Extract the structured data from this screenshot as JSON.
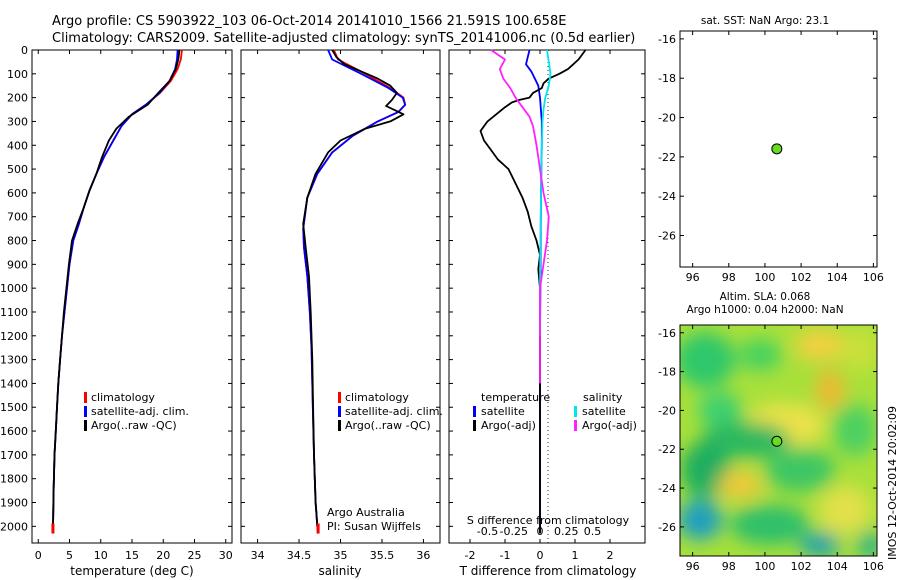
{
  "header": {
    "line1": "Argo profile: CS 5903922_103 06-Oct-2014 20141010_1566 21.591S 100.658E",
    "line2": "Climatology: CARS2009. Satellite-adjusted climatology: synTS_20141006.nc (0.5d earlier)"
  },
  "colors": {
    "climatology": "#ff0000",
    "satellite": "#0000ff",
    "argo": "#000000",
    "salinity_satellite": "#00e5ee",
    "salinity_argo": "#ff20ff",
    "station_marker": "#66dd22"
  },
  "chart_data": [
    {
      "id": "temperature",
      "type": "line",
      "xlabel": "temperature (deg C)",
      "ylabel": "",
      "xlim": [
        -1,
        31
      ],
      "ylim": [
        2070,
        0
      ],
      "xticks": [
        0,
        5,
        10,
        15,
        20,
        25,
        30
      ],
      "xtick_labels": [
        "0",
        "5",
        "10",
        "15",
        "20",
        "25",
        "30"
      ],
      "yticks": [
        0,
        100,
        200,
        300,
        400,
        500,
        600,
        700,
        800,
        900,
        1000,
        1100,
        1200,
        1300,
        1400,
        1500,
        1600,
        1700,
        1800,
        1900,
        2000
      ],
      "ytick_labels": [
        "0",
        "100",
        "200",
        "300",
        "400",
        "500",
        "600",
        "700",
        "800",
        "900",
        "1000",
        "1100",
        "1200",
        "1300",
        "1400",
        "1500",
        "1600",
        "1700",
        "1800",
        "1900",
        "2000"
      ],
      "legend_position": "lower-left",
      "series": [
        {
          "name": "climatology",
          "color": "#ff0000",
          "x": [
            23,
            22.8,
            22.3,
            21.2,
            19.5,
            17.2,
            15,
            13.3,
            12,
            10.5,
            9.3,
            8.2,
            7.3,
            6.5,
            5.6,
            5.0,
            4.6,
            4.2,
            3.8,
            3.5,
            3.2,
            3.0,
            2.8,
            2.6,
            2.45,
            2.35
          ],
          "y": [
            0,
            40,
            80,
            130,
            180,
            230,
            270,
            320,
            380,
            450,
            520,
            590,
            660,
            730,
            800,
            900,
            1000,
            1100,
            1200,
            1300,
            1400,
            1500,
            1600,
            1700,
            1850,
            2030
          ]
        },
        {
          "name": "satellite-adj. clim.",
          "color": "#0000ff",
          "x": [
            22.3,
            22.2,
            21.9,
            21,
            19.4,
            17.2,
            15,
            13.3,
            12,
            10.5,
            9.3,
            8.2,
            7.3,
            6.5,
            5.6,
            5.0,
            4.6,
            4.2,
            3.8,
            3.5,
            3.2,
            3.0,
            2.8,
            2.6,
            2.45,
            2.35
          ],
          "y": [
            0,
            40,
            80,
            130,
            180,
            230,
            270,
            320,
            380,
            450,
            520,
            590,
            660,
            730,
            800,
            900,
            1000,
            1100,
            1200,
            1300,
            1400,
            1500,
            1600,
            1700,
            1850,
            2030
          ]
        },
        {
          "name": "Argo(..raw -QC)",
          "color": "#000000",
          "x": [
            22.6,
            22.4,
            22,
            21,
            19.2,
            17.5,
            14.5,
            12.5,
            11.3,
            10.2,
            9.3,
            8.2,
            7.3,
            6.3,
            5.4,
            4.9,
            4.5,
            4.1,
            3.8,
            3.5,
            3.2,
            3.0,
            2.8,
            2.6,
            2.45,
            2.35
          ],
          "y": [
            0,
            40,
            80,
            130,
            180,
            230,
            280,
            330,
            380,
            450,
            520,
            590,
            660,
            730,
            800,
            900,
            1000,
            1100,
            1200,
            1300,
            1400,
            1500,
            1600,
            1700,
            1850,
            2030
          ]
        }
      ]
    },
    {
      "id": "salinity",
      "type": "line",
      "xlabel": "salinity",
      "xlim": [
        33.8,
        36.2
      ],
      "ylim": [
        2070,
        0
      ],
      "xticks": [
        34,
        34.5,
        35,
        35.5,
        36
      ],
      "xtick_labels": [
        "34",
        "34.5",
        "35",
        "35.5",
        "36"
      ],
      "annotation": [
        "Argo Australia",
        "PI: Susan Wijffels"
      ],
      "legend_position": "lower-right",
      "series": [
        {
          "name": "climatology",
          "color": "#ff0000",
          "x": [
            34.92,
            34.97,
            35.3,
            35.6,
            35.76,
            35.78,
            35.7,
            35.45,
            35.15,
            34.9,
            34.72,
            34.6,
            34.55,
            34.56,
            34.6,
            34.63,
            34.65,
            34.66,
            34.67,
            34.68,
            34.69,
            34.7,
            34.71,
            34.72,
            34.73
          ],
          "y": [
            0,
            40,
            100,
            160,
            200,
            230,
            260,
            300,
            360,
            430,
            520,
            620,
            750,
            830,
            950,
            1100,
            1250,
            1400,
            1550,
            1700,
            1800,
            1900,
            1950,
            2000,
            2030
          ]
        },
        {
          "name": "satellite-adj. clim.",
          "color": "#0000ff",
          "x": [
            34.85,
            34.9,
            35.25,
            35.58,
            35.75,
            35.78,
            35.7,
            35.45,
            35.15,
            34.9,
            34.72,
            34.6,
            34.55,
            34.56,
            34.6,
            34.63,
            34.65,
            34.66,
            34.67,
            34.68,
            34.69,
            34.7,
            34.71,
            34.72,
            34.73
          ],
          "y": [
            0,
            40,
            100,
            160,
            200,
            230,
            260,
            300,
            360,
            430,
            520,
            620,
            750,
            830,
            950,
            1100,
            1250,
            1400,
            1550,
            1700,
            1800,
            1900,
            1950,
            2000,
            2030
          ]
        },
        {
          "name": "Argo(..raw -QC)",
          "color": "#000000",
          "x": [
            34.9,
            34.95,
            35.05,
            35.45,
            35.6,
            35.68,
            35.62,
            35.55,
            35.76,
            35.6,
            35.3,
            35.0,
            34.85,
            34.7,
            34.6,
            34.55,
            34.58,
            34.62,
            34.64,
            34.66,
            34.67,
            34.68,
            34.69,
            34.7,
            34.71,
            34.72,
            34.73
          ],
          "y": [
            0,
            30,
            60,
            120,
            150,
            180,
            210,
            235,
            270,
            300,
            330,
            380,
            430,
            520,
            620,
            730,
            830,
            950,
            1100,
            1300,
            1500,
            1700,
            1800,
            1900,
            1950,
            2000,
            2030
          ]
        }
      ]
    },
    {
      "id": "difference",
      "type": "line",
      "xlabel": "T difference from climatology",
      "xlabel_top": "S difference from climatology",
      "xlim": [
        -2.6,
        3.0
      ],
      "ylim": [
        2070,
        0
      ],
      "xticks": [
        -2,
        -1,
        0,
        1,
        2
      ],
      "xtick_labels": [
        "-2",
        "-1",
        "0",
        "1",
        "2"
      ],
      "xticks_top_labels": [
        "-0.5",
        "-0.25",
        "0",
        "0.25",
        "0.5"
      ],
      "legend_titles": [
        "temperature",
        "salinity"
      ],
      "series": [
        {
          "name": "satellite",
          "group": "temperature",
          "color": "#0000ff",
          "x": [
            -0.3,
            -0.4,
            -0.25,
            -0.05,
            0,
            0.05,
            0.05,
            0.03,
            0.02,
            0.01,
            0,
            0,
            0,
            0,
            0,
            0,
            0
          ],
          "y": [
            0,
            60,
            90,
            150,
            200,
            300,
            400,
            600,
            800,
            1000,
            1200,
            1400,
            1600,
            1800,
            1900,
            2000,
            2030
          ]
        },
        {
          "name": "Argo(-adj)",
          "group": "temperature",
          "color": "#000000",
          "x": [
            1.3,
            1.1,
            0.8,
            0.55,
            0.25,
            0.1,
            0.05,
            -0.2,
            -0.3,
            -0.6,
            -0.8,
            -1.0,
            -1.5,
            -1.7,
            -1.6,
            -1.4,
            -1.2,
            -0.9,
            -0.7,
            -0.5,
            -0.35,
            -0.25,
            -0.1,
            0.0,
            -0.05,
            0,
            0,
            0,
            0,
            0
          ],
          "y": [
            0,
            40,
            80,
            100,
            120,
            140,
            160,
            180,
            200,
            210,
            220,
            240,
            300,
            340,
            380,
            420,
            460,
            500,
            560,
            620,
            680,
            740,
            800,
            860,
            920,
            1000,
            1200,
            1500,
            1800,
            2030
          ]
        },
        {
          "name": "satellite",
          "group": "salinity",
          "color": "#00e5ee",
          "x": [
            0.2,
            0.25,
            0.3,
            0.25,
            0.15,
            0.1,
            0.07,
            0.05,
            0.04,
            0.03,
            0.02,
            0.01,
            0,
            0
          ],
          "y": [
            0,
            50,
            100,
            150,
            200,
            250,
            300,
            400,
            500,
            600,
            700,
            800,
            1000,
            1200
          ]
        },
        {
          "name": "Argo(-adj)",
          "group": "salinity",
          "color": "#ff20ff",
          "x": [
            -1.4,
            -1.0,
            -1.15,
            -1.05,
            -0.85,
            -0.7,
            -0.5,
            -0.3,
            -0.2,
            -0.15,
            -0.1,
            -0.05,
            0,
            0.1,
            0.25,
            0.2,
            0.1,
            0,
            0,
            0
          ],
          "y": [
            0,
            40,
            80,
            120,
            160,
            200,
            240,
            280,
            320,
            360,
            400,
            450,
            500,
            600,
            700,
            800,
            900,
            1000,
            1200,
            1400
          ]
        }
      ]
    },
    {
      "id": "sst",
      "type": "scatter",
      "title": "sat. SST: NaN Argo: 23.1",
      "xlim": [
        95.3,
        106.2
      ],
      "ylim": [
        -27.6,
        -15.6
      ],
      "xticks": [
        96,
        98,
        100,
        102,
        104,
        106
      ],
      "xtick_labels": [
        "96",
        "98",
        "100",
        "102",
        "104",
        "106"
      ],
      "yticks": [
        -16,
        -18,
        -20,
        -22,
        -24,
        -26
      ],
      "ytick_labels": [
        "-16",
        "-18",
        "-20",
        "-22",
        "-24",
        "-26"
      ],
      "points": [
        {
          "x": 100.658,
          "y": -21.591
        }
      ]
    },
    {
      "id": "sla",
      "type": "heatmap",
      "title": [
        "Altim. SLA: 0.068",
        "Argo h1000: 0.04 h2000: NaN"
      ],
      "xlim": [
        95.3,
        106.2
      ],
      "ylim": [
        -27.5,
        -15.6
      ],
      "xticks": [
        96,
        98,
        100,
        102,
        104,
        106
      ],
      "xtick_labels": [
        "96",
        "98",
        "100",
        "102",
        "104",
        "106"
      ],
      "yticks": [
        -16,
        -18,
        -20,
        -22,
        -24,
        -26
      ],
      "ytick_labels": [
        "-16",
        "-18",
        "-20",
        "-22",
        "-24",
        "-26"
      ],
      "points": [
        {
          "x": 100.658,
          "y": -21.591
        }
      ]
    }
  ],
  "legends": {
    "temperature": [
      "climatology",
      "satellite-adj. clim.",
      "Argo(..raw -QC)"
    ],
    "salinity": [
      "climatology",
      "satellite-adj. clim.",
      "Argo(..raw -QC)"
    ],
    "difference": {
      "temperature_title": "temperature",
      "salinity_title": "salinity",
      "temperature_items": [
        "satellite",
        "Argo(-adj)"
      ],
      "salinity_items": [
        "satellite",
        "Argo(-adj)"
      ]
    }
  },
  "side_label": "IMOS 12-Oct-2014 20:02:09"
}
